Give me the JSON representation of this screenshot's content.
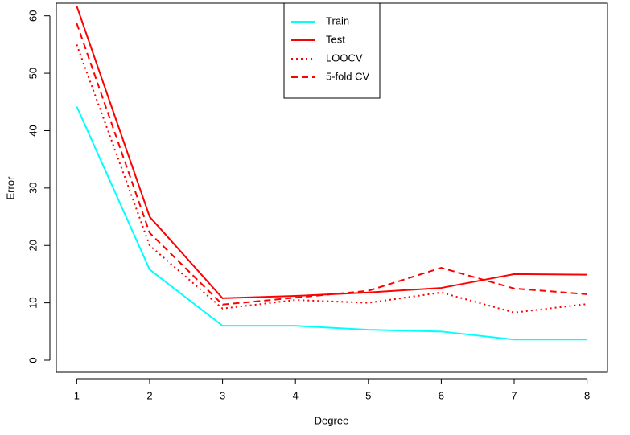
{
  "chart_data": {
    "type": "line",
    "x_label": "Degree",
    "y_label": "Error",
    "x": [
      1,
      2,
      3,
      4,
      5,
      6,
      7,
      8
    ],
    "series": [
      {
        "name": "Train",
        "color": "#00ffff",
        "dash": "solid",
        "values": [
          44.2,
          15.8,
          6.0,
          6.0,
          5.3,
          5.0,
          3.6,
          3.6
        ]
      },
      {
        "name": "Test",
        "color": "#ff0000",
        "dash": "solid",
        "values": [
          61.7,
          25.0,
          10.8,
          11.2,
          11.8,
          12.6,
          15.0,
          14.9
        ]
      },
      {
        "name": "LOOCV",
        "color": "#ff0000",
        "dash": "dotted",
        "values": [
          55.0,
          20.0,
          9.0,
          10.5,
          10.0,
          11.8,
          8.3,
          9.8
        ]
      },
      {
        "name": "5-fold CV",
        "color": "#ff0000",
        "dash": "dashed",
        "values": [
          58.7,
          22.2,
          9.7,
          10.9,
          12.1,
          16.1,
          12.5,
          11.5
        ]
      }
    ],
    "xlim": [
      0.72,
      8.28
    ],
    "xticks": [
      1,
      2,
      3,
      4,
      5,
      6,
      7,
      8
    ],
    "ylim": [
      -2.1,
      62.2
    ],
    "yticks": [
      0,
      10,
      20,
      30,
      40,
      50,
      60
    ],
    "legend": "top"
  }
}
